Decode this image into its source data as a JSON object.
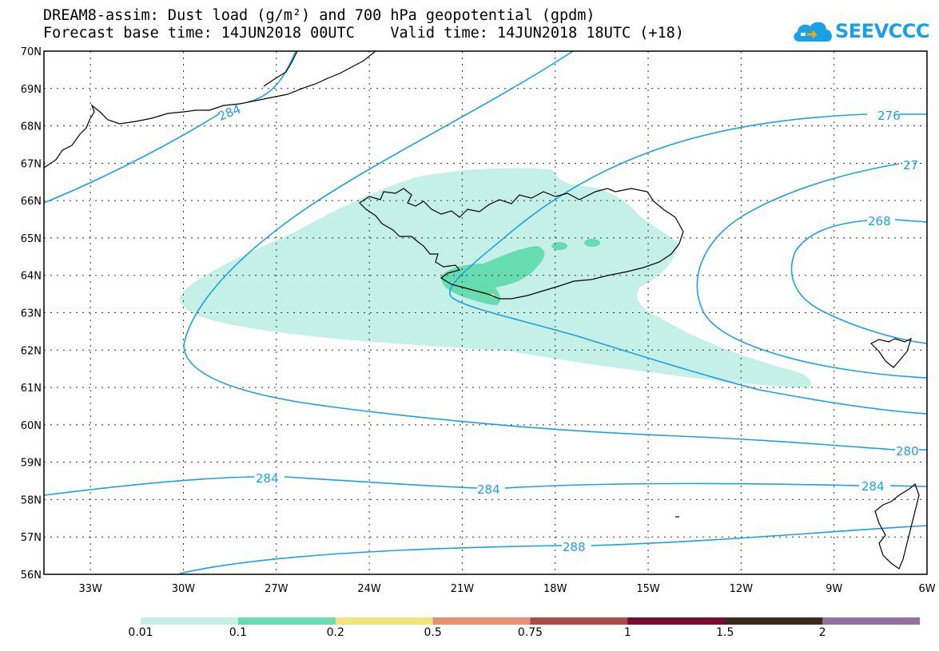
{
  "title": {
    "line1": "DREAM8-assim: Dust load (g/m²) and 700 hPa geopotential (gpdm)",
    "line2": "Forecast base time: 14JUN2018 00UTC    Valid time: 14JUN2018 18UTC (+18)"
  },
  "logo": {
    "text": "SEEVCCC",
    "icon": "cloud-icon",
    "color": "#1aa0e6"
  },
  "map": {
    "lat_labels": [
      "70N",
      "69N",
      "68N",
      "67N",
      "66N",
      "65N",
      "64N",
      "63N",
      "62N",
      "61N",
      "60N",
      "59N",
      "58N",
      "57N",
      "56N"
    ],
    "lon_labels": [
      "33W",
      "30W",
      "27W",
      "24W",
      "21W",
      "18W",
      "15W",
      "12W",
      "9W",
      "6W"
    ],
    "lat_range": [
      56,
      70
    ],
    "lon_range": [
      -34.5,
      -6
    ],
    "grid": "dotted",
    "coastline_color": "#000000",
    "contour_color": "#1aa0e6",
    "contour_labels": [
      "284",
      "276",
      "27",
      "268",
      "280",
      "284",
      "284",
      "284",
      "288"
    ],
    "dust_colors": {
      "light": "#c4f0e8",
      "medium": "#66dcb0",
      "high": "#f4e27a"
    }
  },
  "legend": {
    "labels": [
      "0.01",
      "0.1",
      "0.2",
      "0.5",
      "0.75",
      "1",
      "1.5",
      "2"
    ],
    "colors": [
      "#c4f0e8",
      "#66dcb0",
      "#f4e27a",
      "#e89070",
      "#a84c48",
      "#7a0a30",
      "#3a2a18",
      "#9470a0"
    ]
  }
}
